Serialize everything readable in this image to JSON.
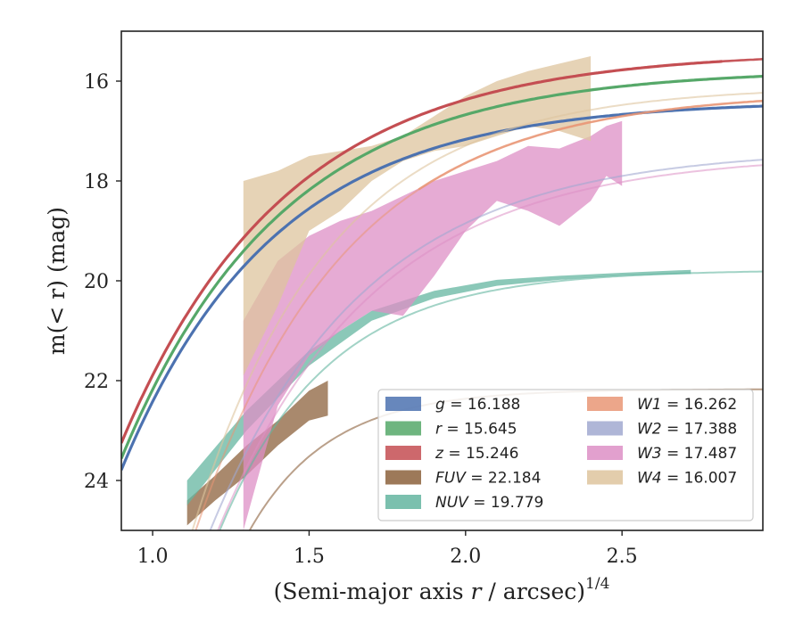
{
  "chart_data": {
    "type": "line",
    "xlabel_main": "(Semi-major axis ",
    "xlabel_var": "r",
    "xlabel_tail": " / arcsec)",
    "xlabel_exp": "1/4",
    "ylabel_main": "m(< r) (mag)",
    "xlim": [
      0.9,
      2.95
    ],
    "ylim": [
      25.0,
      15.0
    ],
    "y_inverted": true,
    "xticks": [
      "1.0",
      "1.5",
      "2.0",
      "2.5"
    ],
    "xtick_values": [
      1.0,
      1.5,
      2.0,
      2.5
    ],
    "yticks": [
      "16",
      "18",
      "20",
      "22",
      "24"
    ],
    "ytick_values": [
      16,
      18,
      20,
      22,
      24
    ],
    "legend_position": "lower-right",
    "series": [
      {
        "name": "g = 16.188",
        "var": "g",
        "val": "16.188",
        "color": "#4c72b0",
        "model": {
          "m0": 16.39,
          "A": 7.4,
          "k": 2.05,
          "x0": 0.9,
          "x1": 2.95,
          "opacity": 0.95,
          "width": 2.6
        },
        "data_range": [
          0.9,
          2.95
        ]
      },
      {
        "name": "r = 15.645",
        "var": "r",
        "val": "15.645",
        "color": "#55a868",
        "model": {
          "m0": 15.76,
          "A": 7.8,
          "k": 1.95,
          "x0": 0.9,
          "x1": 2.95,
          "opacity": 0.95,
          "width": 2.6
        },
        "data_range": [
          0.9,
          2.95
        ]
      },
      {
        "name": "z = 15.246",
        "var": "z",
        "val": "15.246",
        "color": "#c44e52",
        "model": {
          "m0": 15.4,
          "A": 7.85,
          "k": 1.9,
          "x0": 0.9,
          "x1": 2.95,
          "opacity": 0.95,
          "width": 2.6
        },
        "data_range": [
          0.9,
          2.82
        ]
      },
      {
        "name": "FUV = 22.184",
        "var": "FUV",
        "val": "22.184",
        "color": "#8c613c",
        "model": {
          "m0": 22.17,
          "A": 14.0,
          "k": 3.9,
          "x0": 1.05,
          "x1": 2.95,
          "opacity": 0.6,
          "width": 2
        },
        "band": [
          [
            1.11,
            24.4,
            24.9
          ],
          [
            1.2,
            23.9,
            24.4
          ],
          [
            1.3,
            23.3,
            23.9
          ],
          [
            1.4,
            22.8,
            23.3
          ],
          [
            1.5,
            22.2,
            22.8
          ],
          [
            1.56,
            22.0,
            22.7
          ]
        ]
      },
      {
        "name": "NUV = 19.779",
        "var": "NUV",
        "val": "19.779",
        "color": "#64b5a0",
        "model": {
          "m0": 19.78,
          "A": 13.0,
          "k": 2.9,
          "x0": 1.0,
          "x1": 2.95,
          "opacity": 0.6,
          "width": 2
        },
        "band": [
          [
            1.11,
            24.0,
            24.5
          ],
          [
            1.3,
            22.6,
            23.0
          ],
          [
            1.5,
            21.4,
            21.7
          ],
          [
            1.7,
            20.6,
            20.8
          ],
          [
            1.9,
            20.2,
            20.35
          ],
          [
            2.1,
            19.98,
            20.1
          ],
          [
            2.3,
            19.9,
            19.98
          ],
          [
            2.5,
            19.84,
            19.9
          ],
          [
            2.72,
            19.78,
            19.86
          ]
        ]
      },
      {
        "name": "W1 = 16.262",
        "var": "W1",
        "val": "16.262",
        "color": "#e99675",
        "model": {
          "m0": 16.2,
          "A": 14.5,
          "k": 2.1,
          "x0": 0.9,
          "x1": 2.95,
          "opacity": 0.55,
          "width": 2
        },
        "thick_range": [
          1.85,
          2.95
        ]
      },
      {
        "name": "W2 = 17.388",
        "var": "W2",
        "val": "17.388",
        "color": "#a1a9d0",
        "model": {
          "m0": 17.35,
          "A": 13.5,
          "k": 2.0,
          "x0": 0.9,
          "x1": 2.95,
          "opacity": 0.6,
          "width": 2
        }
      },
      {
        "name": "W3 = 17.487",
        "var": "W3",
        "val": "17.487",
        "color": "#dd8fc5",
        "model": {
          "m0": 17.45,
          "A": 14.0,
          "k": 2.0,
          "x0": 0.9,
          "x1": 2.95,
          "opacity": 0.55,
          "width": 2
        },
        "band": [
          [
            1.29,
            25.0,
            25.0
          ],
          [
            1.29,
            20.8,
            25.0
          ],
          [
            1.4,
            19.6,
            22.5
          ],
          [
            1.5,
            19.1,
            21.5
          ],
          [
            1.6,
            18.8,
            21.0
          ],
          [
            1.7,
            18.6,
            20.6
          ],
          [
            1.8,
            18.3,
            20.7
          ],
          [
            1.9,
            18.0,
            19.9
          ],
          [
            2.0,
            17.8,
            19.0
          ],
          [
            2.1,
            17.6,
            18.4
          ],
          [
            2.2,
            17.3,
            18.6
          ],
          [
            2.3,
            17.35,
            18.9
          ],
          [
            2.4,
            17.1,
            18.4
          ],
          [
            2.45,
            16.9,
            17.9
          ],
          [
            2.5,
            16.8,
            18.1
          ]
        ]
      },
      {
        "name": "W4 = 16.007",
        "var": "W4",
        "val": "16.007",
        "color": "#dec49e",
        "model": {
          "m0": 16.1,
          "A": 15.0,
          "k": 2.3,
          "x0": 1.1,
          "x1": 2.95,
          "opacity": 0.6,
          "width": 2
        },
        "band": [
          [
            1.29,
            18.0,
            21.9
          ],
          [
            1.4,
            17.8,
            20.5
          ],
          [
            1.5,
            17.5,
            19.0
          ],
          [
            1.6,
            17.4,
            18.6
          ],
          [
            1.7,
            17.3,
            18.0
          ],
          [
            1.8,
            17.1,
            17.6
          ],
          [
            1.9,
            16.7,
            17.4
          ],
          [
            2.0,
            16.3,
            17.3
          ],
          [
            2.1,
            16.0,
            17.1
          ],
          [
            2.2,
            15.8,
            16.9
          ],
          [
            2.3,
            15.65,
            17.0
          ],
          [
            2.4,
            15.5,
            17.2
          ]
        ]
      }
    ]
  }
}
